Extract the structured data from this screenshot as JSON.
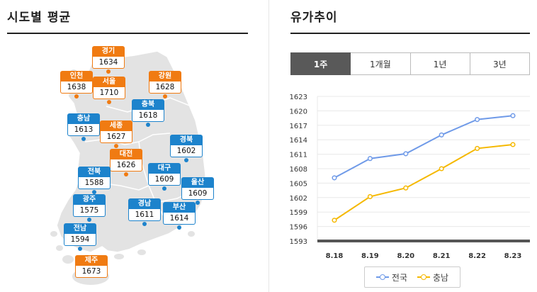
{
  "left_panel": {
    "title": "시도별 평균"
  },
  "right_panel": {
    "title": "유가추이"
  },
  "regions": [
    {
      "key": "gyeonggi",
      "name": "경기",
      "value": "1634",
      "color": "orange"
    },
    {
      "key": "incheon",
      "name": "인천",
      "value": "1638",
      "color": "orange"
    },
    {
      "key": "seoul",
      "name": "서울",
      "value": "1710",
      "color": "orange"
    },
    {
      "key": "gangwon",
      "name": "강원",
      "value": "1628",
      "color": "orange"
    },
    {
      "key": "chungbuk",
      "name": "충북",
      "value": "1618",
      "color": "blue"
    },
    {
      "key": "chungnam",
      "name": "충남",
      "value": "1613",
      "color": "blue"
    },
    {
      "key": "sejong",
      "name": "세종",
      "value": "1627",
      "color": "orange"
    },
    {
      "key": "gyeongbuk",
      "name": "경북",
      "value": "1602",
      "color": "blue"
    },
    {
      "key": "daejeon",
      "name": "대전",
      "value": "1626",
      "color": "orange"
    },
    {
      "key": "jeonbuk",
      "name": "전북",
      "value": "1588",
      "color": "blue"
    },
    {
      "key": "daegu",
      "name": "대구",
      "value": "1609",
      "color": "blue"
    },
    {
      "key": "ulsan",
      "name": "울산",
      "value": "1609",
      "color": "blue"
    },
    {
      "key": "gwangju",
      "name": "광주",
      "value": "1575",
      "color": "blue"
    },
    {
      "key": "gyeongnam",
      "name": "경남",
      "value": "1611",
      "color": "blue"
    },
    {
      "key": "busan",
      "name": "부산",
      "value": "1614",
      "color": "blue"
    },
    {
      "key": "jeonnam",
      "name": "전남",
      "value": "1594",
      "color": "blue"
    },
    {
      "key": "jeju",
      "name": "제주",
      "value": "1673",
      "color": "orange"
    }
  ],
  "tabs": [
    {
      "label": "1주",
      "active": true
    },
    {
      "label": "1개월",
      "active": false
    },
    {
      "label": "1년",
      "active": false
    },
    {
      "label": "3년",
      "active": false
    }
  ],
  "legend": [
    {
      "name": "전국",
      "color": "#6f9ae8"
    },
    {
      "name": "충남",
      "color": "#f5b800"
    }
  ],
  "colors": {
    "orange": "#f07b12",
    "blue": "#1d83cc",
    "active_tab": "#595959"
  },
  "chart_data": {
    "type": "line",
    "categories": [
      "8.18",
      "8.19",
      "8.20",
      "8.21",
      "8.22",
      "8.23"
    ],
    "yticks": [
      1593,
      1596,
      1599,
      1602,
      1605,
      1608,
      1611,
      1614,
      1617,
      1620,
      1623
    ],
    "ylim": [
      1593,
      1623
    ],
    "grid": true,
    "legend_position": "bottom",
    "series": [
      {
        "name": "전국",
        "color": "#6f9ae8",
        "values": [
          1606.1,
          1610.1,
          1611.1,
          1615.0,
          1618.2,
          1619.0
        ]
      },
      {
        "name": "충남",
        "color": "#f5b800",
        "values": [
          1597.3,
          1602.2,
          1604.0,
          1608.0,
          1612.2,
          1613.0
        ]
      }
    ]
  }
}
